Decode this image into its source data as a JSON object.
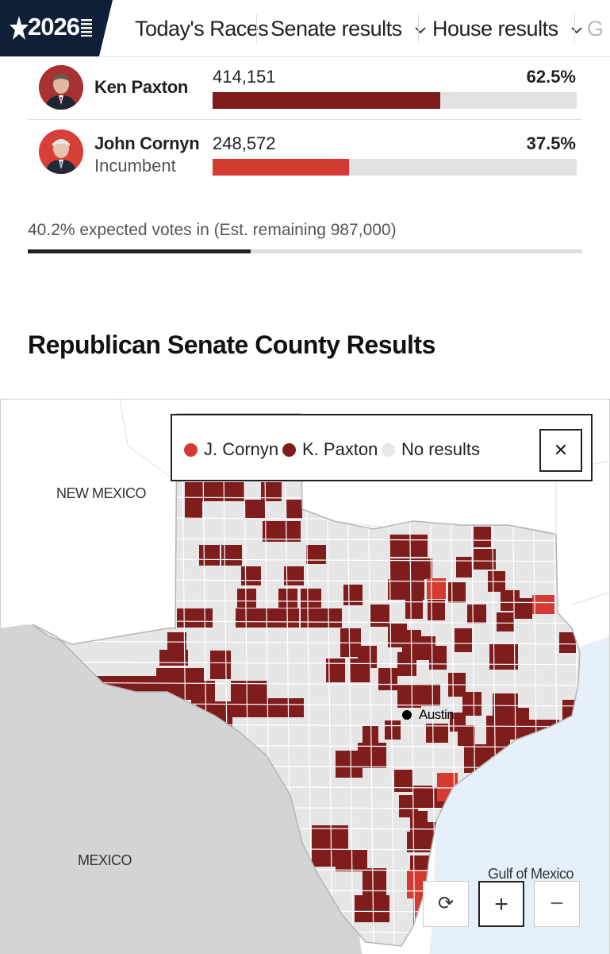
{
  "nav": {
    "logo_text": "2026",
    "items": [
      {
        "label": "Today's Races",
        "has_chevron": false
      },
      {
        "label": "Senate results",
        "has_chevron": true
      },
      {
        "label": "House results",
        "has_chevron": true
      },
      {
        "label": "G",
        "has_chevron": false
      }
    ],
    "logo_bg": "#0f1f38"
  },
  "candidates": [
    {
      "name": "Ken Paxton",
      "subtitle": "",
      "votes": "414,151",
      "percent": "62.5%",
      "share": 0.625,
      "color": "#7f1d1d"
    },
    {
      "name": "John Cornyn",
      "subtitle": "Incumbent",
      "votes": "248,572",
      "percent": "37.5%",
      "share": 0.375,
      "color": "#d33a32"
    }
  ],
  "expected": {
    "text": "40.2% expected votes in (Est. remaining 987,000)",
    "share": 0.402
  },
  "map_section": {
    "title": "Republican Senate County Results",
    "legend": [
      {
        "label": "J. Cornyn",
        "color": "#d33a32"
      },
      {
        "label": "K. Paxton",
        "color": "#7f1d1d"
      },
      {
        "label": "No results",
        "color": "#e6e6e6"
      }
    ],
    "legend_close_icon": "close-icon",
    "labels": {
      "new_mexico": "NEW MEXICO",
      "mexico": "MEXICO",
      "gulf": "Gulf of Mexico",
      "city": "Austin"
    },
    "controls": [
      {
        "name": "reset-view-button",
        "icon": "refresh-icon",
        "symbol": "⟳"
      },
      {
        "name": "zoom-in-button",
        "icon": "plus-icon",
        "symbol": "+"
      },
      {
        "name": "zoom-out-button",
        "icon": "minus-icon",
        "symbol": "−"
      }
    ],
    "colors": {
      "land_outside": "#d4d4d4",
      "water": "#e6f0fa",
      "county_empty": "#e6e6e6",
      "county_border": "#ffffff"
    }
  }
}
